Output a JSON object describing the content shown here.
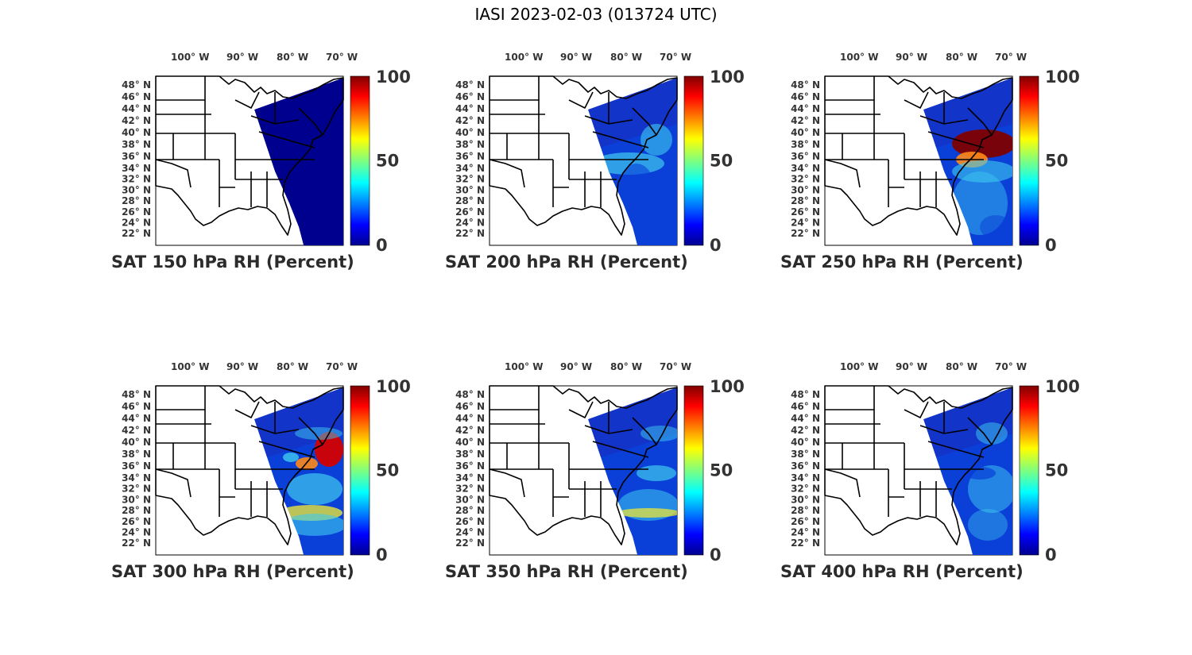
{
  "title": "IASI 2023-02-03 (013724 UTC)",
  "lon_ticks": [
    {
      "deg": "100",
      "label": "100° W"
    },
    {
      "deg": "90",
      "label": "90° W"
    },
    {
      "deg": "80",
      "label": "80° W"
    },
    {
      "deg": "70",
      "label": "70° W"
    }
  ],
  "lat_ticks": [
    "48° N",
    "46° N",
    "44° N",
    "42° N",
    "40° N",
    "38° N",
    "36° N",
    "34° N",
    "32° N",
    "30° N",
    "28° N",
    "26° N",
    "24° N",
    "22° N"
  ],
  "colorbar": {
    "ticks": [
      "100",
      "50",
      "0"
    ],
    "colormap": "jet",
    "range": [
      0,
      100
    ]
  },
  "colors": {
    "low": "#00008f",
    "blue": "#0a3fd8",
    "cyan": "#3ecbf0",
    "yellow": "#e8e53a",
    "orange": "#ff8a1a",
    "red": "#d40000",
    "darkred": "#800000",
    "outline": "#000000"
  },
  "panels": [
    {
      "id": "p150",
      "caption": "SAT 150 hPa RH (Percent)",
      "level_hpa": 150,
      "unit": "Percent"
    },
    {
      "id": "p200",
      "caption": "SAT 200 hPa RH (Percent)",
      "level_hpa": 200,
      "unit": "Percent"
    },
    {
      "id": "p250",
      "caption": "SAT 250 hPa RH (Percent)",
      "level_hpa": 250,
      "unit": "Percent"
    },
    {
      "id": "p300",
      "caption": "SAT 300 hPa RH (Percent)",
      "level_hpa": 300,
      "unit": "Percent"
    },
    {
      "id": "p350",
      "caption": "SAT 350 hPa RH (Percent)",
      "level_hpa": 350,
      "unit": "Percent"
    },
    {
      "id": "p400",
      "caption": "SAT 400 hPa RH (Percent)",
      "level_hpa": 400,
      "unit": "Percent"
    }
  ]
}
